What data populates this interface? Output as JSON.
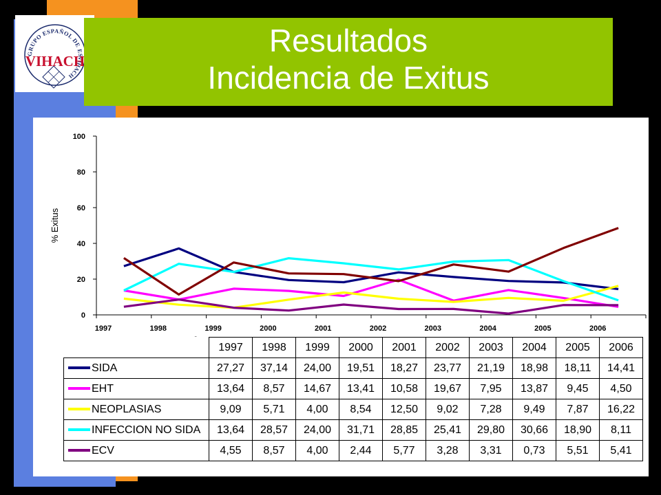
{
  "slide": {
    "title_line1": "Resultados",
    "title_line2": "Incidencia de Exitus",
    "logo": {
      "icon": "vihach-logo-seal",
      "ring_text_top": "GRUPO ESPAÑOL DE ESTUDIOS",
      "ring_text_bottom": "VIHACH",
      "center_text": "VIHACH"
    },
    "stray_mark": "0"
  },
  "colors": {
    "background": "#000000",
    "title_bg": "#92c400",
    "title_text": "#ffffff",
    "accent_orange": "#f5921f",
    "accent_blue": "#5b7fe0"
  },
  "chart_data": {
    "type": "line",
    "ylabel": "% Exitus",
    "xlabel": "",
    "ylim": [
      0,
      100
    ],
    "yticks": [
      "0",
      "20",
      "40",
      "60",
      "80",
      "100"
    ],
    "categories": [
      "1997",
      "1998",
      "1999",
      "2000",
      "2001",
      "2002",
      "2003",
      "2004",
      "2005",
      "2006"
    ],
    "grid": false,
    "legend": "data-table-below",
    "series": [
      {
        "name": "SIDA",
        "color": "#000080",
        "values": [
          27.27,
          37.14,
          24.0,
          19.51,
          18.27,
          23.77,
          21.19,
          18.98,
          18.11,
          14.41
        ],
        "labels": [
          "27,27",
          "37,14",
          "24,00",
          "19,51",
          "18,27",
          "23,77",
          "21,19",
          "18,98",
          "18,11",
          "14,41"
        ]
      },
      {
        "name": "EHT",
        "color": "#ff00ff",
        "values": [
          13.64,
          8.57,
          14.67,
          13.41,
          10.58,
          19.67,
          7.95,
          13.87,
          9.45,
          4.5
        ],
        "labels": [
          "13,64",
          "8,57",
          "14,67",
          "13,41",
          "10,58",
          "19,67",
          "7,95",
          "13,87",
          "9,45",
          "4,50"
        ]
      },
      {
        "name": "NEOPLASIAS",
        "color": "#ffff00",
        "values": [
          9.09,
          5.71,
          4.0,
          8.54,
          12.5,
          9.02,
          7.28,
          9.49,
          7.87,
          16.22
        ],
        "labels": [
          "9,09",
          "5,71",
          "4,00",
          "8,54",
          "12,50",
          "9,02",
          "7,28",
          "9,49",
          "7,87",
          "16,22"
        ]
      },
      {
        "name": "INFECCION NO SIDA",
        "color": "#00ffff",
        "values": [
          13.64,
          28.57,
          24.0,
          31.71,
          28.85,
          25.41,
          29.8,
          30.66,
          18.9,
          8.11
        ],
        "labels": [
          "13,64",
          "28,57",
          "24,00",
          "31,71",
          "28,85",
          "25,41",
          "29,80",
          "30,66",
          "18,90",
          "8,11"
        ]
      },
      {
        "name": "ECV",
        "color": "#800080",
        "values": [
          4.55,
          8.57,
          4.0,
          2.44,
          5.77,
          3.28,
          3.31,
          0.73,
          5.51,
          5.41
        ],
        "labels": [
          "4,55",
          "8,57",
          "4,00",
          "2,44",
          "5,77",
          "3,28",
          "3,31",
          "0,73",
          "5,51",
          "5,41"
        ]
      },
      {
        "name": "",
        "color": "#800000",
        "values": [
          31.8,
          11.4,
          29.3,
          23.2,
          22.8,
          18.9,
          28.2,
          24.2,
          37.4,
          48.6
        ]
      }
    ]
  }
}
